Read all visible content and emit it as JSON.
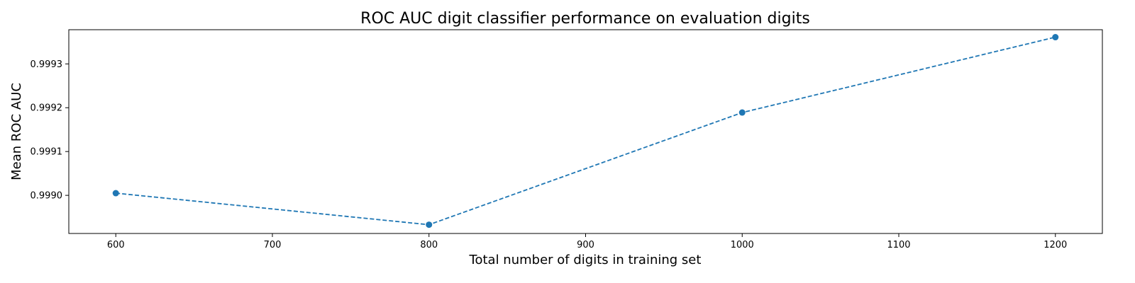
{
  "chart_data": {
    "type": "line",
    "title": "ROC AUC digit classifier performance on evaluation digits",
    "xlabel": "Total number of digits in training set",
    "ylabel": "Mean ROC AUC",
    "x": [
      600,
      800,
      1000,
      1200
    ],
    "series": [
      {
        "values": [
          0.999005,
          0.998933,
          0.999189,
          0.999361
        ]
      }
    ],
    "xlim": [
      570,
      1230
    ],
    "ylim": [
      0.998913,
      0.999378
    ],
    "xticks": [
      600,
      700,
      800,
      900,
      1000,
      1100,
      1200
    ],
    "yticks": [
      0.999,
      0.9991,
      0.9992,
      0.9993
    ],
    "xtick_labels": [
      "600",
      "700",
      "800",
      "900",
      "1000",
      "1100",
      "1200"
    ],
    "ytick_labels": [
      "0.9990",
      "0.9991",
      "0.9992",
      "0.9993"
    ],
    "line_style": "dashed",
    "marker": "circle",
    "color": "#1f77b4",
    "grid": false,
    "legend": "none"
  }
}
